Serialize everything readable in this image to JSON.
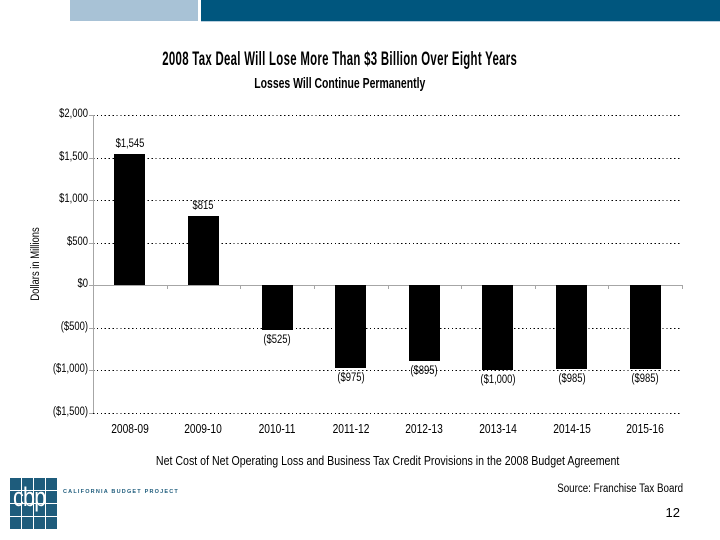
{
  "slide": {
    "banner": {
      "light_color": "#a8c2d6",
      "dark_color": "#00567e"
    },
    "header": {
      "title": "2008 Tax Deal Will Lose More Than $3 Billion Over Eight Years",
      "subtitle": "Losses Will Continue Permanently"
    },
    "footer": {
      "logo_text": "cbp",
      "logo_wordmark": "CALIFORNIA BUDGET PROJECT",
      "logo_color": "#1e5c7c",
      "source": "Source: Franchise Tax Board",
      "page_number": "12"
    }
  },
  "chart_data": {
    "type": "bar",
    "title": "2008 Tax Deal Will Lose More Than $3 Billion Over Eight Years",
    "subtitle": "Losses Will Continue Permanently",
    "ylabel": "Dollars in Millions",
    "xlabel": "",
    "caption": "Net Cost of Net Operating Loss and Business Tax Credit Provisions in the 2008 Budget Agreement",
    "categories": [
      "2008-09",
      "2009-10",
      "2010-11",
      "2011-12",
      "2012-13",
      "2013-14",
      "2014-15",
      "2015-16"
    ],
    "values": [
      1545,
      815,
      -525,
      -975,
      -895,
      -1000,
      -985,
      -985
    ],
    "value_labels": [
      "$1,545",
      "$815",
      "($525)",
      "($975)",
      "($895)",
      "($1,000)",
      "($985)",
      "($985)"
    ],
    "yticks": [
      {
        "label": "$2,000",
        "value": 2000
      },
      {
        "label": "$1,500",
        "value": 1500
      },
      {
        "label": "$1,000",
        "value": 1000
      },
      {
        "label": "$500",
        "value": 500
      },
      {
        "label": "$0",
        "value": 0
      },
      {
        "label": "($500)",
        "value": -500
      },
      {
        "label": "($1,000)",
        "value": -1000
      },
      {
        "label": "($1,500)",
        "value": -1500
      }
    ],
    "ylim": [
      -1500,
      2000
    ],
    "grid": "dotted-horizontal",
    "legend": "none",
    "bar_color": "#000000",
    "axis_color": "#a6a6a6",
    "gridline_color": "#000000"
  }
}
